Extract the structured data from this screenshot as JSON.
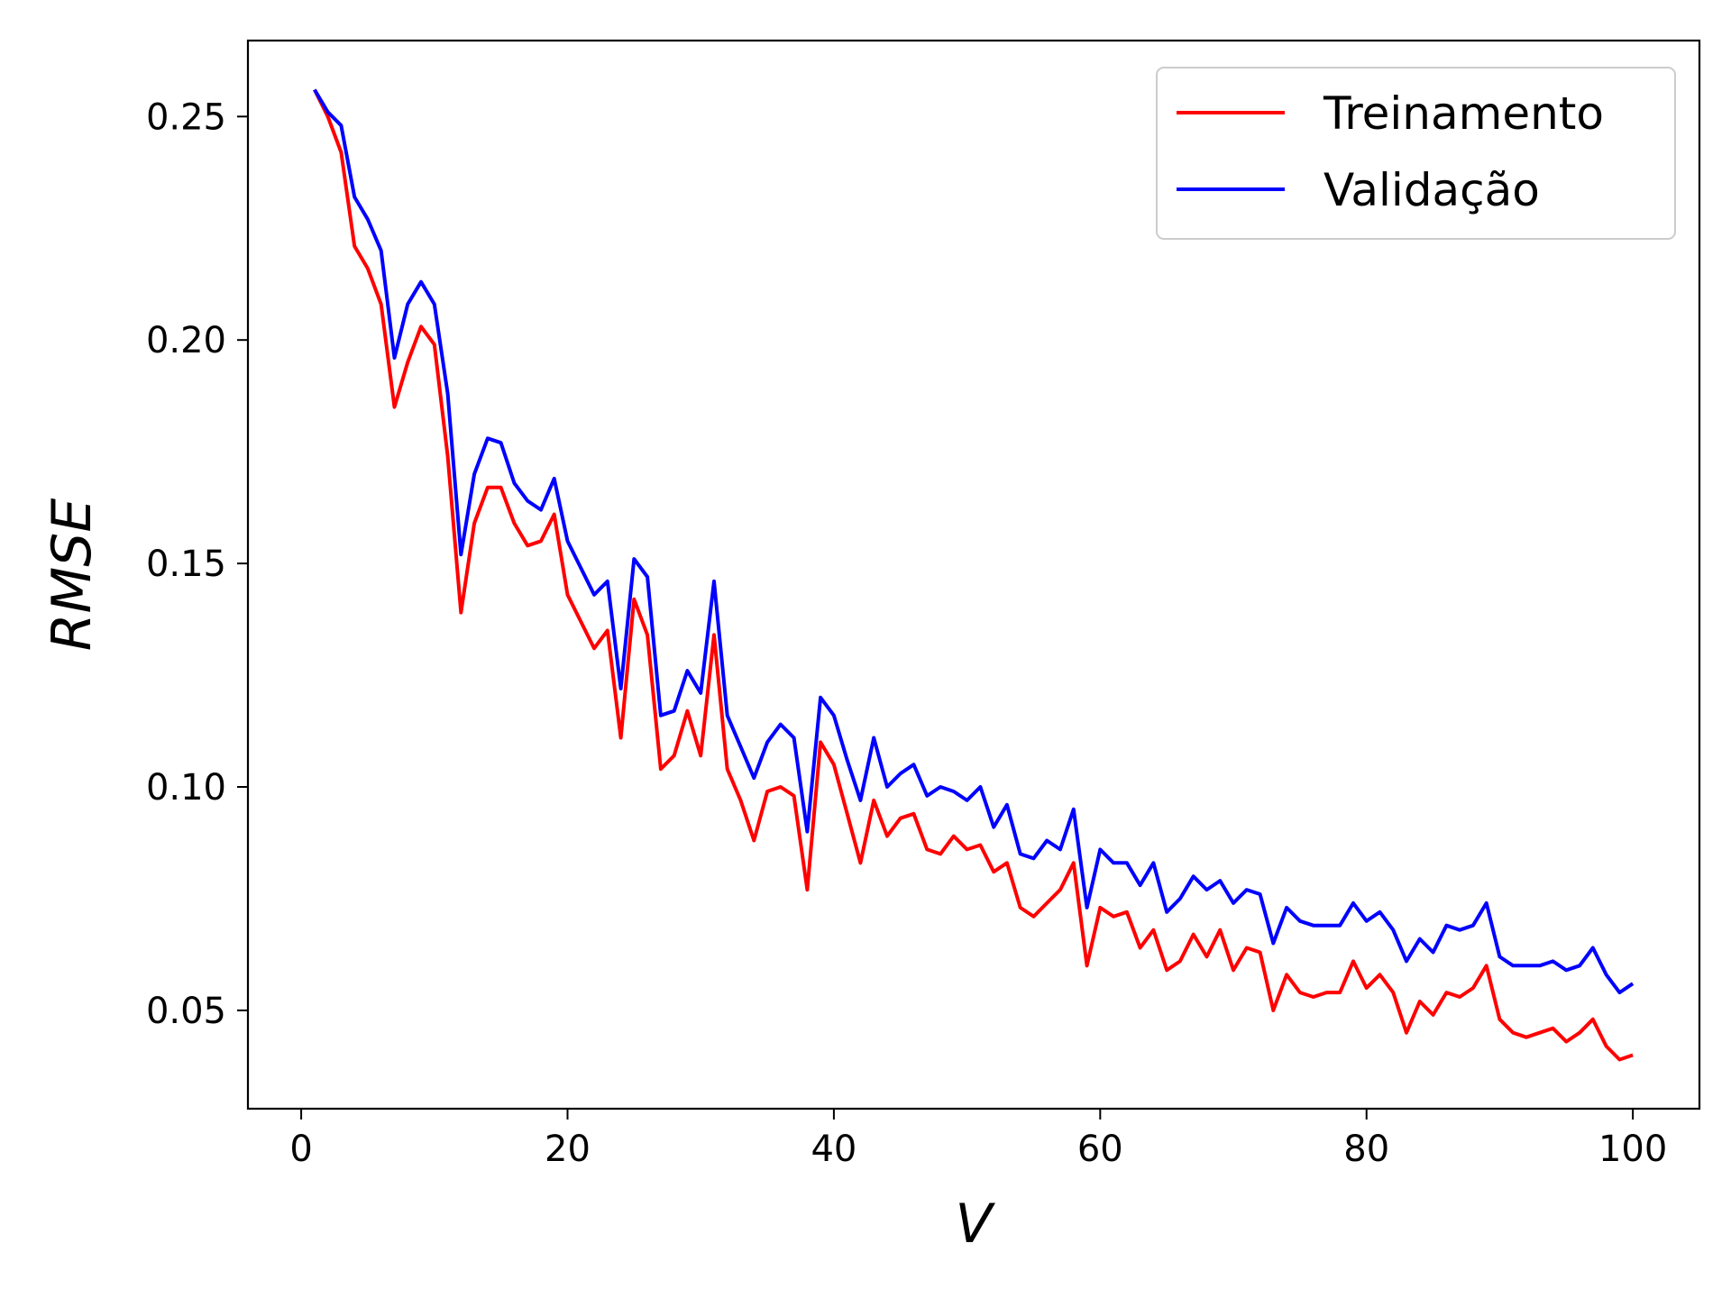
{
  "chart_data": {
    "type": "line",
    "xlabel": "V",
    "ylabel": "RMSE",
    "xlim": [
      -4,
      105
    ],
    "ylim": [
      0.028,
      0.267
    ],
    "xticks": [
      0,
      20,
      40,
      60,
      80,
      100
    ],
    "xtick_labels": [
      "0",
      "20",
      "40",
      "60",
      "80",
      "100"
    ],
    "yticks": [
      0.05,
      0.1,
      0.15,
      0.2,
      0.25
    ],
    "ytick_labels": [
      "0.05",
      "0.10",
      "0.15",
      "0.20",
      "0.25"
    ],
    "grid": false,
    "legend_position": "top-right",
    "x": [
      1,
      2,
      3,
      4,
      5,
      6,
      7,
      8,
      9,
      10,
      11,
      12,
      13,
      14,
      15,
      16,
      17,
      18,
      19,
      20,
      21,
      22,
      23,
      24,
      25,
      26,
      27,
      28,
      29,
      30,
      31,
      32,
      33,
      34,
      35,
      36,
      37,
      38,
      39,
      40,
      41,
      42,
      43,
      44,
      45,
      46,
      47,
      48,
      49,
      50,
      51,
      52,
      53,
      54,
      55,
      56,
      57,
      58,
      59,
      60,
      61,
      62,
      63,
      64,
      65,
      66,
      67,
      68,
      69,
      70,
      71,
      72,
      73,
      74,
      75,
      76,
      77,
      78,
      79,
      80,
      81,
      82,
      83,
      84,
      85,
      86,
      87,
      88,
      89,
      90,
      91,
      92,
      93,
      94,
      95,
      96,
      97,
      98,
      99,
      100
    ],
    "series": [
      {
        "name": "Treinamento",
        "color": "#ff0000",
        "values": [
          0.256,
          0.25,
          0.242,
          0.221,
          0.216,
          0.208,
          0.185,
          0.195,
          0.203,
          0.199,
          0.174,
          0.139,
          0.159,
          0.167,
          0.167,
          0.159,
          0.154,
          0.155,
          0.161,
          0.143,
          0.137,
          0.131,
          0.135,
          0.111,
          0.142,
          0.134,
          0.104,
          0.107,
          0.117,
          0.107,
          0.134,
          0.104,
          0.097,
          0.088,
          0.099,
          0.1,
          0.098,
          0.077,
          0.11,
          0.105,
          0.094,
          0.083,
          0.097,
          0.089,
          0.093,
          0.094,
          0.086,
          0.085,
          0.089,
          0.086,
          0.087,
          0.081,
          0.083,
          0.073,
          0.071,
          0.074,
          0.077,
          0.083,
          0.06,
          0.073,
          0.071,
          0.072,
          0.064,
          0.068,
          0.059,
          0.061,
          0.067,
          0.062,
          0.068,
          0.059,
          0.064,
          0.063,
          0.05,
          0.058,
          0.054,
          0.053,
          0.054,
          0.054,
          0.061,
          0.055,
          0.058,
          0.054,
          0.045,
          0.052,
          0.049,
          0.054,
          0.053,
          0.055,
          0.06,
          0.048,
          0.045,
          0.044,
          0.045,
          0.046,
          0.043,
          0.045,
          0.048,
          0.042,
          0.039,
          0.04
        ]
      },
      {
        "name": "Validação",
        "color": "#0000ff",
        "values": [
          0.256,
          0.251,
          0.248,
          0.232,
          0.227,
          0.22,
          0.196,
          0.208,
          0.213,
          0.208,
          0.188,
          0.152,
          0.17,
          0.178,
          0.177,
          0.168,
          0.164,
          0.162,
          0.169,
          0.155,
          0.149,
          0.143,
          0.146,
          0.122,
          0.151,
          0.147,
          0.116,
          0.117,
          0.126,
          0.121,
          0.146,
          0.116,
          0.109,
          0.102,
          0.11,
          0.114,
          0.111,
          0.09,
          0.12,
          0.116,
          0.106,
          0.097,
          0.111,
          0.1,
          0.103,
          0.105,
          0.098,
          0.1,
          0.099,
          0.097,
          0.1,
          0.091,
          0.096,
          0.085,
          0.084,
          0.088,
          0.086,
          0.095,
          0.073,
          0.086,
          0.083,
          0.083,
          0.078,
          0.083,
          0.072,
          0.075,
          0.08,
          0.077,
          0.079,
          0.074,
          0.077,
          0.076,
          0.065,
          0.073,
          0.07,
          0.069,
          0.069,
          0.069,
          0.074,
          0.07,
          0.072,
          0.068,
          0.061,
          0.066,
          0.063,
          0.069,
          0.068,
          0.069,
          0.074,
          0.062,
          0.06,
          0.06,
          0.06,
          0.061,
          0.059,
          0.06,
          0.064,
          0.058,
          0.054,
          0.056
        ]
      }
    ]
  }
}
